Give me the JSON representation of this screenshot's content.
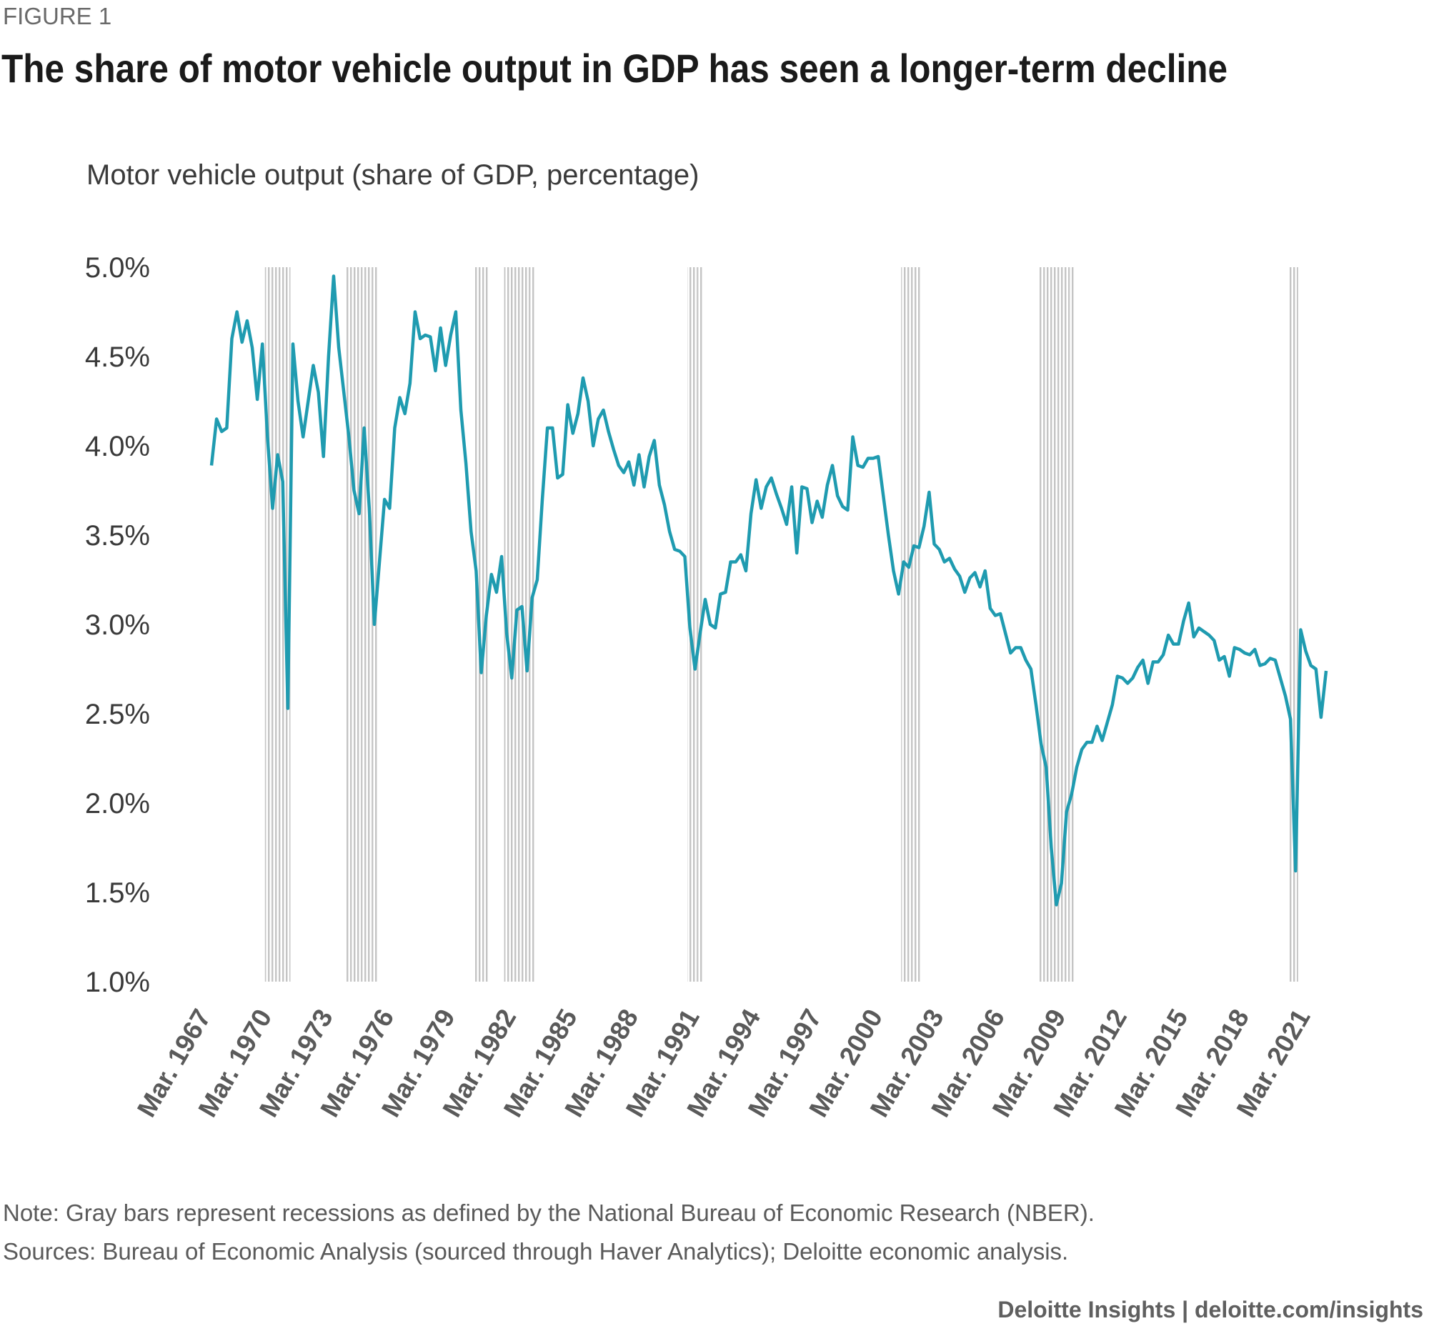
{
  "figure_label": "FIGURE 1",
  "chart_data": {
    "type": "line",
    "title": "The share of motor vehicle output in GDP has seen a longer-term decline",
    "y_axis_label": "Motor vehicle output (share of GDP, percentage)",
    "ylim": [
      1.0,
      5.0
    ],
    "yticks": [
      {
        "value": 1.0,
        "label": "1.0%"
      },
      {
        "value": 1.5,
        "label": "1.5%"
      },
      {
        "value": 2.0,
        "label": "2.0%"
      },
      {
        "value": 2.5,
        "label": "2.5%"
      },
      {
        "value": 3.0,
        "label": "3.0%"
      },
      {
        "value": 3.5,
        "label": "3.5%"
      },
      {
        "value": 4.0,
        "label": "4.0%"
      },
      {
        "value": 4.5,
        "label": "4.5%"
      },
      {
        "value": 5.0,
        "label": "5.0%"
      }
    ],
    "grid": false,
    "categories": [
      "Mar. 1967",
      null,
      null,
      null,
      null,
      null,
      null,
      null,
      null,
      null,
      null,
      null,
      "Mar. 1970",
      null,
      null,
      null,
      null,
      null,
      null,
      null,
      null,
      null,
      null,
      null,
      "Mar. 1973",
      null,
      null,
      null,
      null,
      null,
      null,
      null,
      null,
      null,
      null,
      null,
      "Mar. 1976",
      null,
      null,
      null,
      null,
      null,
      null,
      null,
      null,
      null,
      null,
      null,
      "Mar. 1979",
      null,
      null,
      null,
      null,
      null,
      null,
      null,
      null,
      null,
      null,
      null,
      "Mar. 1982",
      null,
      null,
      null,
      null,
      null,
      null,
      null,
      null,
      null,
      null,
      null,
      "Mar. 1985",
      null,
      null,
      null,
      null,
      null,
      null,
      null,
      null,
      null,
      null,
      null,
      "Mar. 1988",
      null,
      null,
      null,
      null,
      null,
      null,
      null,
      null,
      null,
      null,
      null,
      "Mar. 1991",
      null,
      null,
      null,
      null,
      null,
      null,
      null,
      null,
      null,
      null,
      null,
      "Mar. 1994",
      null,
      null,
      null,
      null,
      null,
      null,
      null,
      null,
      null,
      null,
      null,
      "Mar. 1997",
      null,
      null,
      null,
      null,
      null,
      null,
      null,
      null,
      null,
      null,
      null,
      "Mar. 2000",
      null,
      null,
      null,
      null,
      null,
      null,
      null,
      null,
      null,
      null,
      null,
      "Mar. 2003",
      null,
      null,
      null,
      null,
      null,
      null,
      null,
      null,
      null,
      null,
      null,
      "Mar. 2006",
      null,
      null,
      null,
      null,
      null,
      null,
      null,
      null,
      null,
      null,
      null,
      "Mar. 2009",
      null,
      null,
      null,
      null,
      null,
      null,
      null,
      null,
      null,
      null,
      null,
      "Mar. 2012",
      null,
      null,
      null,
      null,
      null,
      null,
      null,
      null,
      null,
      null,
      null,
      "Mar. 2015",
      null,
      null,
      null,
      null,
      null,
      null,
      null,
      null,
      null,
      null,
      null,
      "Mar. 2018",
      null,
      null,
      null,
      null,
      null,
      null,
      null,
      null,
      null,
      null,
      null,
      "Mar. 2021",
      null,
      null,
      null
    ],
    "series": [
      {
        "color": "#1f9bb0",
        "values": [
          3.89,
          4.15,
          4.08,
          4.1,
          4.6,
          4.75,
          4.58,
          4.7,
          4.55,
          4.26,
          4.57,
          4.05,
          3.65,
          3.95,
          3.8,
          2.53,
          4.57,
          4.25,
          4.05,
          4.25,
          4.45,
          4.3,
          3.94,
          4.5,
          4.95,
          4.55,
          4.3,
          4.05,
          3.75,
          3.62,
          4.1,
          3.65,
          3.0,
          3.35,
          3.7,
          3.65,
          4.1,
          4.27,
          4.18,
          4.35,
          4.75,
          4.6,
          4.62,
          4.61,
          4.42,
          4.66,
          4.45,
          4.62,
          4.75,
          4.2,
          3.9,
          3.52,
          3.3,
          2.73,
          3.05,
          3.28,
          3.18,
          3.38,
          2.95,
          2.7,
          3.08,
          3.1,
          2.74,
          3.15,
          3.25,
          3.7,
          4.1,
          4.1,
          3.82,
          3.84,
          4.23,
          4.07,
          4.18,
          4.38,
          4.25,
          4.0,
          4.15,
          4.2,
          4.08,
          3.98,
          3.89,
          3.85,
          3.91,
          3.78,
          3.95,
          3.77,
          3.94,
          4.03,
          3.78,
          3.67,
          3.52,
          3.42,
          3.41,
          3.38,
          2.98,
          2.75,
          2.95,
          3.14,
          3.0,
          2.98,
          3.17,
          3.18,
          3.35,
          3.35,
          3.39,
          3.3,
          3.62,
          3.81,
          3.65,
          3.77,
          3.82,
          3.73,
          3.65,
          3.56,
          3.77,
          3.4,
          3.77,
          3.76,
          3.57,
          3.69,
          3.6,
          3.78,
          3.89,
          3.72,
          3.66,
          3.64,
          4.05,
          3.89,
          3.88,
          3.93,
          3.93,
          3.94,
          3.72,
          3.5,
          3.3,
          3.17,
          3.35,
          3.32,
          3.44,
          3.43,
          3.55,
          3.74,
          3.45,
          3.42,
          3.35,
          3.37,
          3.31,
          3.27,
          3.18,
          3.26,
          3.29,
          3.21,
          3.3,
          3.09,
          3.05,
          3.06,
          2.95,
          2.84,
          2.87,
          2.87,
          2.8,
          2.75,
          2.55,
          2.33,
          2.2,
          1.75,
          1.43,
          1.55,
          1.95,
          2.05,
          2.2,
          2.3,
          2.34,
          2.34,
          2.43,
          2.35,
          2.45,
          2.55,
          2.71,
          2.7,
          2.67,
          2.7,
          2.76,
          2.8,
          2.67,
          2.79,
          2.79,
          2.83,
          2.94,
          2.89,
          2.89,
          3.02,
          3.12,
          2.93,
          2.98,
          2.96,
          2.94,
          2.91,
          2.8,
          2.82,
          2.71,
          2.87,
          2.86,
          2.84,
          2.83,
          2.86,
          2.77,
          2.78,
          2.81,
          2.8,
          2.7,
          2.6,
          2.47,
          1.62,
          2.97,
          2.85,
          2.77,
          2.75,
          2.48,
          2.74
        ]
      }
    ],
    "recession_bars": {
      "color": "#c4c4c4",
      "values": [
        null,
        null,
        null,
        null,
        null,
        null,
        null,
        null,
        null,
        null,
        null,
        5,
        5,
        5,
        5,
        5,
        null,
        null,
        null,
        null,
        null,
        null,
        null,
        null,
        null,
        null,
        null,
        5,
        5,
        5,
        5,
        5,
        5,
        null,
        null,
        null,
        null,
        null,
        null,
        null,
        null,
        null,
        null,
        null,
        null,
        null,
        null,
        null,
        null,
        null,
        null,
        null,
        5,
        5,
        5,
        null,
        null,
        null,
        5,
        5,
        5,
        5,
        5,
        5,
        null,
        null,
        null,
        null,
        null,
        null,
        null,
        null,
        null,
        null,
        null,
        null,
        null,
        null,
        null,
        null,
        null,
        null,
        null,
        null,
        null,
        null,
        null,
        null,
        null,
        null,
        null,
        null,
        null,
        null,
        5,
        5,
        5,
        null,
        null,
        null,
        null,
        null,
        null,
        null,
        null,
        null,
        null,
        null,
        null,
        null,
        null,
        null,
        null,
        null,
        null,
        null,
        null,
        null,
        null,
        null,
        null,
        null,
        null,
        null,
        null,
        null,
        null,
        null,
        null,
        null,
        null,
        null,
        null,
        null,
        null,
        null,
        5,
        5,
        5,
        5,
        null,
        null,
        null,
        null,
        null,
        null,
        null,
        null,
        null,
        null,
        null,
        null,
        null,
        null,
        null,
        null,
        null,
        null,
        null,
        null,
        null,
        null,
        null,
        5,
        5,
        5,
        5,
        5,
        5,
        5,
        null,
        null,
        null,
        null,
        null,
        null,
        null,
        null,
        null,
        null,
        null,
        null,
        null,
        null,
        null,
        null,
        null,
        null,
        null,
        null,
        null,
        null,
        null,
        null,
        null,
        null,
        null,
        null,
        null,
        null,
        null,
        null,
        null,
        null,
        null,
        null,
        null,
        null,
        null,
        null,
        null,
        null,
        5,
        5,
        null,
        null,
        null,
        null,
        null,
        null
      ]
    }
  },
  "notes": [
    "Note: Gray bars represent recessions as defined by the National Bureau of Economic Research (NBER).",
    "Sources: Bureau of Economic Analysis (sourced through Haver Analytics); Deloitte economic analysis."
  ],
  "footer": "Deloitte Insights | deloitte.com/insights"
}
